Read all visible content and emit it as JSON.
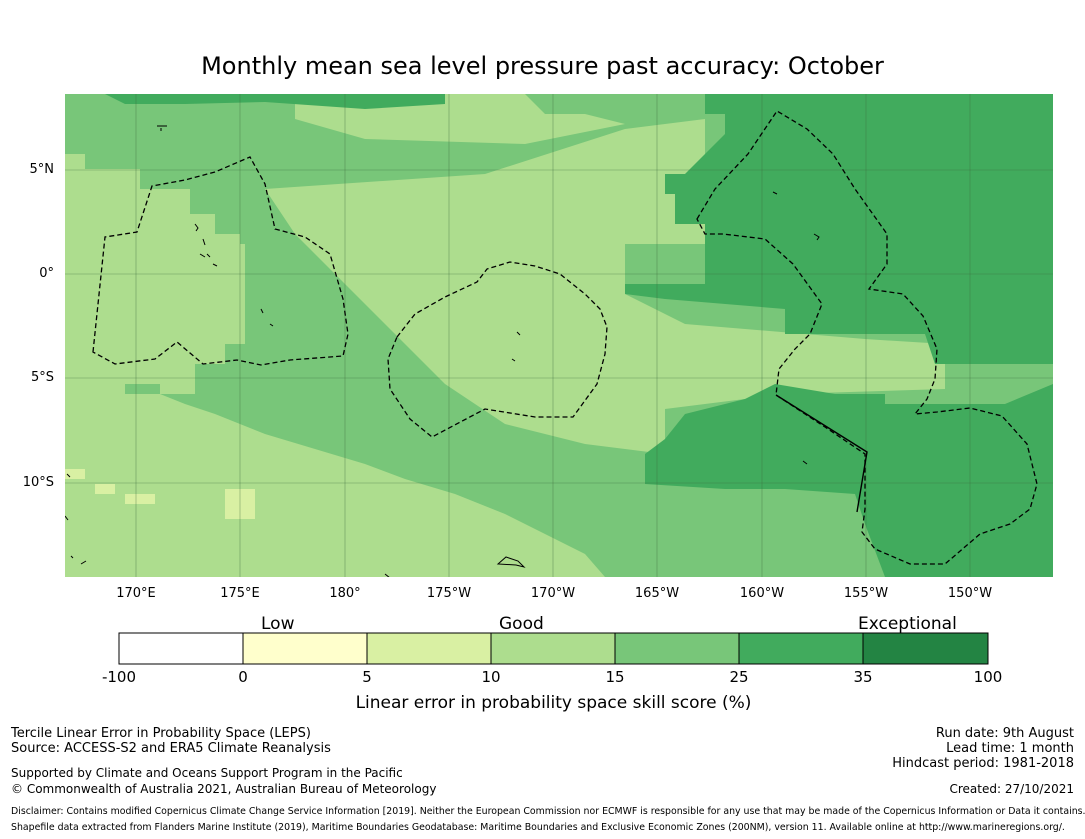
{
  "title": "Monthly mean sea level pressure past accuracy: October",
  "map": {
    "lat_labels": [
      "5°N",
      "0°",
      "5°S",
      "10°S"
    ],
    "lon_labels": [
      "170°E",
      "175°E",
      "180°",
      "175°W",
      "170°W",
      "165°W",
      "160°W",
      "155°W",
      "150°W"
    ]
  },
  "colorbar": {
    "categories": [
      "Low",
      "Good",
      "Exceptional"
    ],
    "ticks": [
      "-100",
      "0",
      "5",
      "10",
      "15",
      "25",
      "35",
      "100"
    ],
    "colors": [
      "#ffffff",
      "#ffffcc",
      "#d9f0a3",
      "#addd8e",
      "#78c679",
      "#41ab5d",
      "#238443"
    ],
    "label": "Linear error in probability space skill score (%)"
  },
  "footer": {
    "left": {
      "line1": "Tercile Linear Error in Probability Space (LEPS)",
      "line2": "Source: ACCESS-S2 and ERA5 Climate Reanalysis",
      "line3": "Supported by Climate and Oceans Support Program in the Pacific",
      "line4": "© Commonwealth of Australia 2021, Australian Bureau of Meteorology"
    },
    "right": {
      "run_date": "Run date: 9th August",
      "lead_time": "Lead time: 1 month",
      "hindcast": "Hindcast period: 1981-2018",
      "created": "Created: 27/10/2021"
    },
    "disclaimer": "Disclaimer: Contains modified Copernicus Climate Change Service Information [2019]. Neither the European Commission nor ECMWF is responsible for any use that may be made of the Copernicus Information or Data it contains.",
    "shapefile": "Shapefile data extracted from Flanders Marine Institute (2019), Maritime Boundaries Geodatabase: Maritime Boundaries and Exclusive Economic Zones (200NM), version 11. Available online at http://www.marineregions.org/."
  }
}
